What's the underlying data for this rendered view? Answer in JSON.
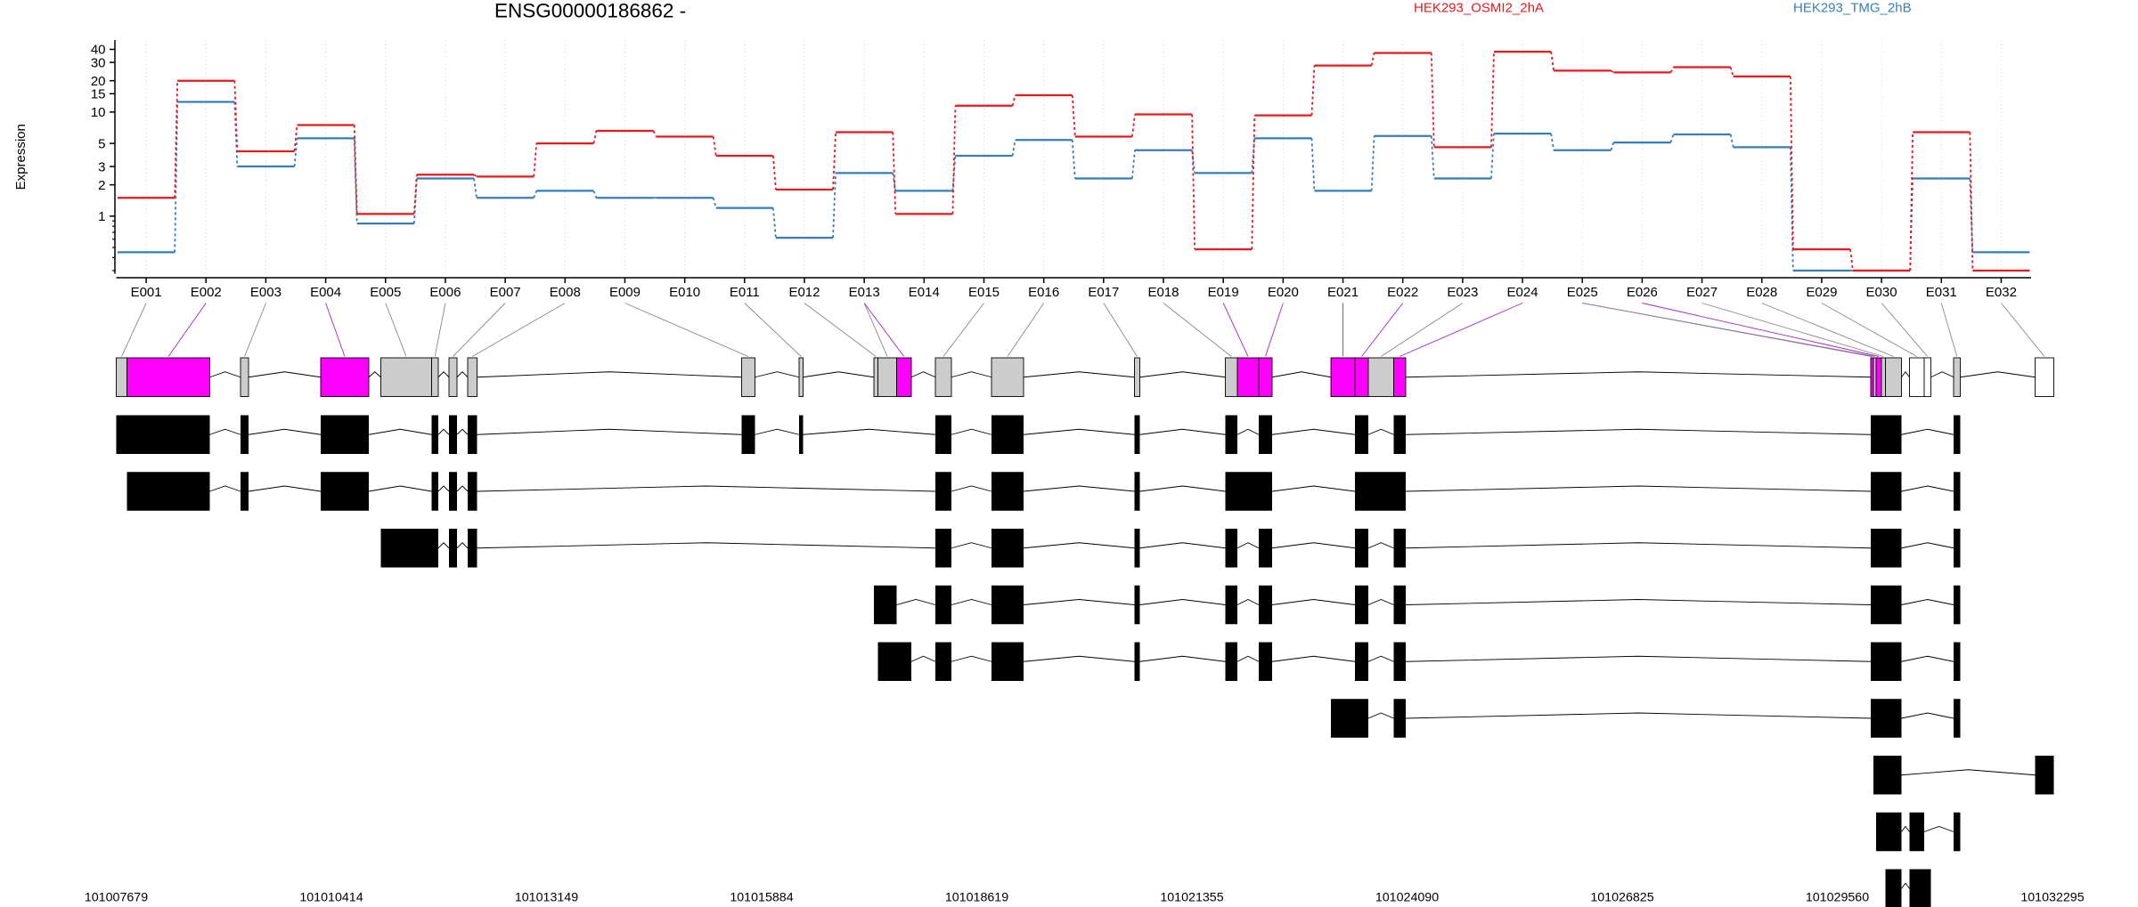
{
  "chart_data": {
    "type": "line",
    "title": "ENSG00000186862 -",
    "ylabel": "Expression",
    "y_scale": "log",
    "ylim": [
      0.28,
      45
    ],
    "yticks": [
      1,
      2,
      3,
      5,
      10,
      15,
      20,
      30,
      40
    ],
    "grid": "vertical dotted per exon",
    "legend_position": "top-right",
    "colors": {
      "series1": "#e41a1c",
      "series2": "#377eb8",
      "exon_highlight": "#ff00ff",
      "exon_default": "#cccccc",
      "transcript": "#000000"
    },
    "exons": [
      "E001",
      "E002",
      "E003",
      "E004",
      "E005",
      "E006",
      "E007",
      "E008",
      "E009",
      "E010",
      "E011",
      "E012",
      "E013",
      "E014",
      "E015",
      "E016",
      "E017",
      "E018",
      "E019",
      "E020",
      "E021",
      "E022",
      "E023",
      "E024",
      "E025",
      "E026",
      "E027",
      "E028",
      "E029",
      "E030",
      "E031",
      "E032"
    ],
    "series": [
      {
        "name": "HEK293_OSMI2_2hA",
        "values": [
          1.5,
          20,
          4.2,
          7.5,
          1.05,
          2.5,
          2.4,
          5,
          6.6,
          5.8,
          3.8,
          1.8,
          6.4,
          1.05,
          11.5,
          14.5,
          5.8,
          9.5,
          0.48,
          9.3,
          28,
          37,
          4.6,
          38,
          25,
          24,
          27,
          22,
          0.48,
          0.3,
          6.4,
          0.3
        ]
      },
      {
        "name": "HEK293_TMG_2hB",
        "values": [
          0.45,
          12.5,
          3,
          5.6,
          0.85,
          2.3,
          1.5,
          1.75,
          1.5,
          1.5,
          1.2,
          0.62,
          2.6,
          1.75,
          3.8,
          5.4,
          2.3,
          4.3,
          2.6,
          5.6,
          1.75,
          5.9,
          2.3,
          6.2,
          4.3,
          5.1,
          6.1,
          4.6,
          0.3,
          0.3,
          2.3,
          0.45
        ]
      }
    ],
    "genomic_axis": {
      "tick_labels": [
        "101007679",
        "101010414",
        "101013149",
        "101015884",
        "101018619",
        "101021355",
        "101024090",
        "101026825",
        "101029560",
        "101032295"
      ]
    },
    "gene_model": {
      "exon_blocks": 39,
      "highlighted_exons": [
        "E002",
        "E004",
        "E014",
        "E019",
        "E020",
        "E021",
        "E022",
        "E030"
      ]
    },
    "transcripts": {
      "count": 10
    }
  }
}
